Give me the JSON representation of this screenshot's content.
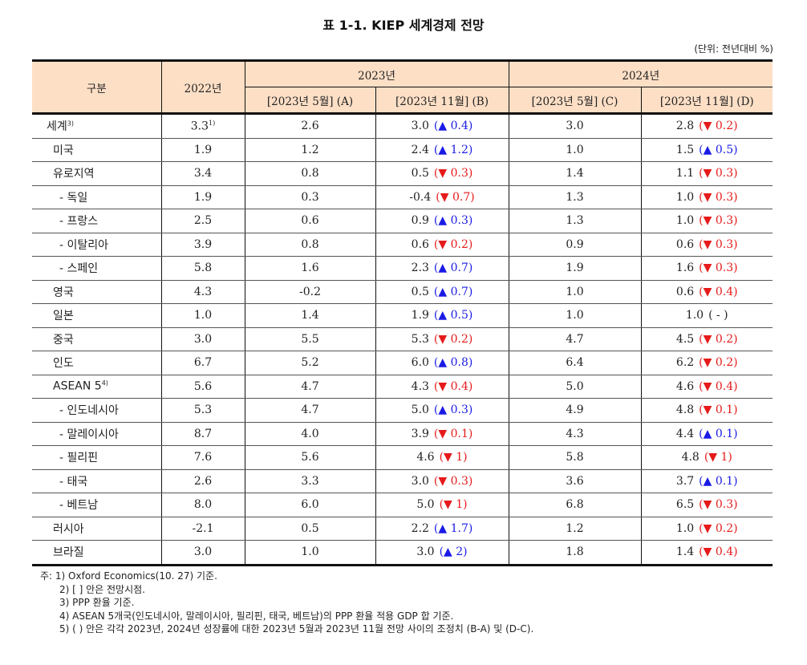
{
  "title": "표 1-1. KIEP 세계경제 전망",
  "unit": "(단위: 전년대비 %)",
  "header": {
    "category": "구분",
    "y2022": "2022년",
    "y2023": "2023년",
    "y2024": "2024년",
    "col_a": "[2023년 5월] (A)",
    "col_b": "[2023년 11월] (B)",
    "col_c": "[2023년 5월] (C)",
    "col_d": "[2023년 11월] (D)"
  },
  "colors": {
    "up": "#1a1ae6",
    "down": "#e61a1a",
    "header_bg": "#fddfc6"
  },
  "rows": [
    {
      "name": "세계",
      "sup": "3)",
      "y2022": "3.3",
      "y2022_sup": "1)",
      "a": "2.6",
      "b": "3.0",
      "b_chg": "(▲ 0.4)",
      "b_dir": "up",
      "c": "3.0",
      "d": "2.8",
      "d_chg": "(▼ 0.2)",
      "d_dir": "down"
    },
    {
      "name": "미국",
      "y2022": "1.9",
      "a": "1.2",
      "b": "2.4",
      "b_chg": "(▲ 1.2)",
      "b_dir": "up",
      "c": "1.0",
      "d": "1.5",
      "d_chg": "(▲ 0.5)",
      "d_dir": "up"
    },
    {
      "name": "유로지역",
      "y2022": "3.4",
      "a": "0.8",
      "b": "0.5",
      "b_chg": "(▼ 0.3)",
      "b_dir": "down",
      "c": "1.4",
      "d": "1.1",
      "d_chg": "(▼ 0.3)",
      "d_dir": "down"
    },
    {
      "name": "- 독일",
      "y2022": "1.9",
      "a": "0.3",
      "b": "-0.4",
      "b_chg": "(▼ 0.7)",
      "b_dir": "down",
      "c": "1.3",
      "d": "1.0",
      "d_chg": "(▼ 0.3)",
      "d_dir": "down"
    },
    {
      "name": "- 프랑스",
      "y2022": "2.5",
      "a": "0.6",
      "b": "0.9",
      "b_chg": "(▲ 0.3)",
      "b_dir": "up",
      "c": "1.3",
      "d": "1.0",
      "d_chg": "(▼ 0.3)",
      "d_dir": "down"
    },
    {
      "name": "- 이탈리아",
      "y2022": "3.9",
      "a": "0.8",
      "b": "0.6",
      "b_chg": "(▼ 0.2)",
      "b_dir": "down",
      "c": "0.9",
      "d": "0.6",
      "d_chg": "(▼ 0.3)",
      "d_dir": "down"
    },
    {
      "name": "- 스페인",
      "y2022": "5.8",
      "a": "1.6",
      "b": "2.3",
      "b_chg": "(▲ 0.7)",
      "b_dir": "up",
      "c": "1.9",
      "d": "1.6",
      "d_chg": "(▼ 0.3)",
      "d_dir": "down"
    },
    {
      "name": "영국",
      "y2022": "4.3",
      "a": "-0.2",
      "b": "0.5",
      "b_chg": "(▲ 0.7)",
      "b_dir": "up",
      "c": "1.0",
      "d": "0.6",
      "d_chg": "(▼ 0.4)",
      "d_dir": "down"
    },
    {
      "name": "일본",
      "y2022": "1.0",
      "a": "1.4",
      "b": "1.9",
      "b_chg": "(▲ 0.5)",
      "b_dir": "up",
      "c": "1.0",
      "d": "1.0",
      "d_chg": "(  -  )",
      "d_dir": "flat"
    },
    {
      "name": "중국",
      "y2022": "3.0",
      "a": "5.5",
      "b": "5.3",
      "b_chg": "(▼ 0.2)",
      "b_dir": "down",
      "c": "4.7",
      "d": "4.5",
      "d_chg": "(▼ 0.2)",
      "d_dir": "down"
    },
    {
      "name": "인도",
      "y2022": "6.7",
      "a": "5.2",
      "b": "6.0",
      "b_chg": "(▲ 0.8)",
      "b_dir": "up",
      "c": "6.4",
      "d": "6.2",
      "d_chg": "(▼ 0.2)",
      "d_dir": "down"
    },
    {
      "name": "ASEAN 5",
      "sup": "4)",
      "y2022": "5.6",
      "a": "4.7",
      "b": "4.3",
      "b_chg": "(▼ 0.4)",
      "b_dir": "down",
      "c": "5.0",
      "d": "4.6",
      "d_chg": "(▼ 0.4)",
      "d_dir": "down"
    },
    {
      "name": "- 인도네시아",
      "y2022": "5.3",
      "a": "4.7",
      "b": "5.0",
      "b_chg": "(▲ 0.3)",
      "b_dir": "up",
      "c": "4.9",
      "d": "4.8",
      "d_chg": "(▼ 0.1)",
      "d_dir": "down"
    },
    {
      "name": "- 말레이시아",
      "y2022": "8.7",
      "a": "4.0",
      "b": "3.9",
      "b_chg": "(▼ 0.1)",
      "b_dir": "down",
      "c": "4.3",
      "d": "4.4",
      "d_chg": "(▲ 0.1)",
      "d_dir": "up"
    },
    {
      "name": "- 필리핀",
      "y2022": "7.6",
      "a": "5.6",
      "b": "4.6",
      "b_chg": "(▼ 1)",
      "b_dir": "down",
      "c": "5.8",
      "d": "4.8",
      "d_chg": "(▼ 1)",
      "d_dir": "down"
    },
    {
      "name": "- 태국",
      "y2022": "2.6",
      "a": "3.3",
      "b": "3.0",
      "b_chg": "(▼ 0.3)",
      "b_dir": "down",
      "c": "3.6",
      "d": "3.7",
      "d_chg": "(▲ 0.1)",
      "d_dir": "up"
    },
    {
      "name": "- 베트남",
      "y2022": "8.0",
      "a": "6.0",
      "b": "5.0",
      "b_chg": "(▼ 1)",
      "b_dir": "down",
      "c": "6.8",
      "d": "6.5",
      "d_chg": "(▼ 0.3)",
      "d_dir": "down"
    },
    {
      "name": "러시아",
      "y2022": "-2.1",
      "a": "0.5",
      "b": "2.2",
      "b_chg": "(▲ 1.7)",
      "b_dir": "up",
      "c": "1.2",
      "d": "1.0",
      "d_chg": "(▼ 0.2)",
      "d_dir": "down"
    },
    {
      "name": "브라질",
      "y2022": "3.0",
      "a": "1.0",
      "b": "3.0",
      "b_chg": "(▲ 2)",
      "b_dir": "up",
      "c": "1.8",
      "d": "1.4",
      "d_chg": "(▼ 0.4)",
      "d_dir": "down"
    }
  ],
  "notes": {
    "prefix": "주:",
    "items": [
      "1) Oxford Economics(10. 27) 기준.",
      "2) [ ] 안은 전망시점.",
      "3) PPP 환율 기준.",
      "4) ASEAN 5개국(인도네시아, 말레이시아, 필리핀, 태국, 베트남)의 PPP 환율 적용 GDP 합 기준.",
      "5) (  ) 안은 각각 2023년, 2024년 성장률에 대한 2023년 5월과 2023년 11월 전망 사이의 조정치 (B-A) 및 (D-C)."
    ]
  }
}
